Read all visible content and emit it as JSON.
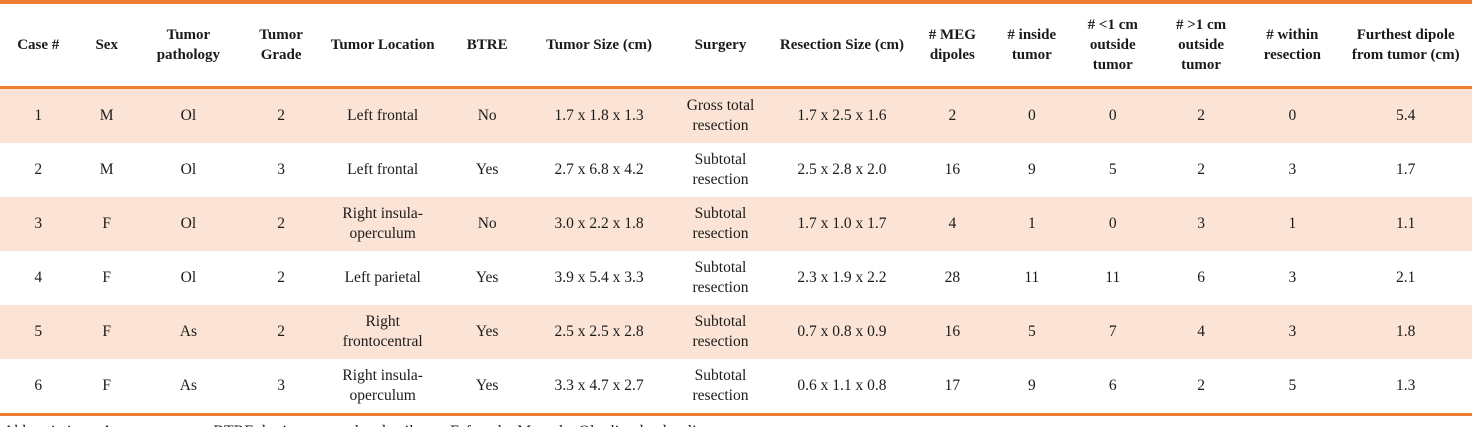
{
  "colors": {
    "accent_orange": "#ED7D31",
    "row_shade_peach": "#FBE4D5",
    "text": "#1B1B1B"
  },
  "table": {
    "columns": [
      "Case #",
      "Sex",
      "Tumor pathology",
      "Tumor Grade",
      "Tumor Location",
      "BTRE",
      "Tumor Size (cm)",
      "Surgery",
      "Resection Size (cm)",
      "# MEG dipoles",
      "# inside tumor",
      "# <1 cm outside tumor",
      "# >1 cm outside tumor",
      "# within resection",
      "Furthest dipole from tumor (cm)"
    ],
    "rows": [
      {
        "cells": [
          "1",
          "M",
          "Ol",
          "2",
          "Left frontal",
          "No",
          "1.7 x 1.8 x 1.3",
          "Gross total resection",
          "1.7 x 2.5 x 1.6",
          "2",
          "0",
          "0",
          "2",
          "0",
          "5.4"
        ]
      },
      {
        "cells": [
          "2",
          "M",
          "Ol",
          "3",
          "Left frontal",
          "Yes",
          "2.7 x 6.8 x 4.2",
          "Subtotal resection",
          "2.5 x 2.8 x 2.0",
          "16",
          "9",
          "5",
          "2",
          "3",
          "1.7"
        ]
      },
      {
        "cells": [
          "3",
          "F",
          "Ol",
          "2",
          "Right insula-operculum",
          "No",
          "3.0 x 2.2 x 1.8",
          "Subtotal resection",
          "1.7 x 1.0 x 1.7",
          "4",
          "1",
          "0",
          "3",
          "1",
          "1.1"
        ]
      },
      {
        "cells": [
          "4",
          "F",
          "Ol",
          "2",
          "Left parietal",
          "Yes",
          "3.9 x 5.4 x 3.3",
          "Subtotal resection",
          "2.3 x 1.9 x 2.2",
          "28",
          "11",
          "11",
          "6",
          "3",
          "2.1"
        ]
      },
      {
        "cells": [
          "5",
          "F",
          "As",
          "2",
          "Right frontocentral",
          "Yes",
          "2.5 x 2.5 x 2.8",
          "Subtotal resection",
          "0.7 x 0.8 x 0.9",
          "16",
          "5",
          "7",
          "4",
          "3",
          "1.8"
        ]
      },
      {
        "cells": [
          "6",
          "F",
          "As",
          "3",
          "Right insula-operculum",
          "Yes",
          "3.3 x 4.7 x 2.7",
          "Subtotal resection",
          "0.6 x 1.1 x 0.8",
          "17",
          "9",
          "6",
          "2",
          "5",
          "1.3"
        ]
      }
    ]
  },
  "footnote": "Abbreviations: As, astrocytoma. BTRE, brain tumor-related epilepsy. F, female. M, male. Ol, oligodendroglioma."
}
